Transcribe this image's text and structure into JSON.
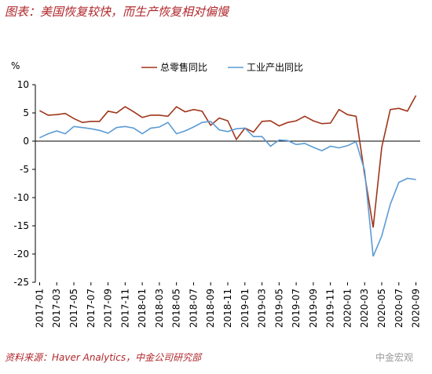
{
  "chart_data": {
    "type": "line",
    "title": "图表：美国恢复较快，而生产恢复相对偏慢",
    "y_label": "%",
    "source": "资料来源：Haver Analytics，中金公司研究部",
    "watermark": "中金宏观",
    "categories": [
      "2017-01",
      null,
      "2017-03",
      null,
      "2017-05",
      null,
      "2017-07",
      null,
      "2017-09",
      null,
      "2017-11",
      null,
      "2018-01",
      null,
      "2018-03",
      null,
      "2018-05",
      null,
      "2018-07",
      null,
      "2018-09",
      null,
      "2018-11",
      null,
      "2019-01",
      null,
      "2019-03",
      null,
      "2019-05",
      null,
      "2019-07",
      null,
      "2019-09",
      null,
      "2019-11",
      null,
      "2020-01",
      null,
      "2020-03",
      null,
      "2020-05",
      null,
      "2020-07",
      null,
      "2020-09"
    ],
    "series": [
      {
        "name": "总零售同比",
        "color": "#A0351A",
        "values": [
          5.4,
          4.6,
          4.7,
          4.9,
          4.0,
          3.3,
          3.5,
          3.5,
          5.3,
          5.0,
          6.1,
          5.2,
          4.2,
          4.6,
          4.6,
          4.4,
          6.1,
          5.2,
          5.6,
          5.3,
          2.8,
          4.1,
          3.6,
          0.3,
          2.3,
          1.6,
          3.5,
          3.6,
          2.7,
          3.3,
          3.6,
          4.4,
          3.6,
          3.1,
          3.2,
          5.6,
          4.7,
          4.4,
          -5.9,
          -15.3,
          -1.1,
          5.6,
          5.8,
          5.3,
          8.1
        ]
      },
      {
        "name": "工业产出同比",
        "color": "#5B9BD5",
        "values": [
          0.6,
          1.3,
          1.8,
          1.3,
          2.6,
          2.4,
          2.2,
          1.9,
          1.4,
          2.4,
          2.6,
          2.3,
          1.3,
          2.3,
          2.5,
          3.3,
          1.3,
          1.8,
          2.5,
          3.3,
          3.5,
          2.0,
          1.7,
          2.2,
          2.3,
          0.8,
          0.8,
          -0.9,
          0.2,
          0.1,
          -0.6,
          -0.4,
          -1.1,
          -1.7,
          -0.9,
          -1.2,
          -0.8,
          -0.1,
          -5.2,
          -20.4,
          -16.8,
          -11.2,
          -7.3,
          -6.6,
          -6.8
        ]
      }
    ],
    "ylim": [
      -25,
      10
    ],
    "yticks": [
      -25,
      -20,
      -15,
      -10,
      -5,
      0,
      5,
      10
    ]
  }
}
